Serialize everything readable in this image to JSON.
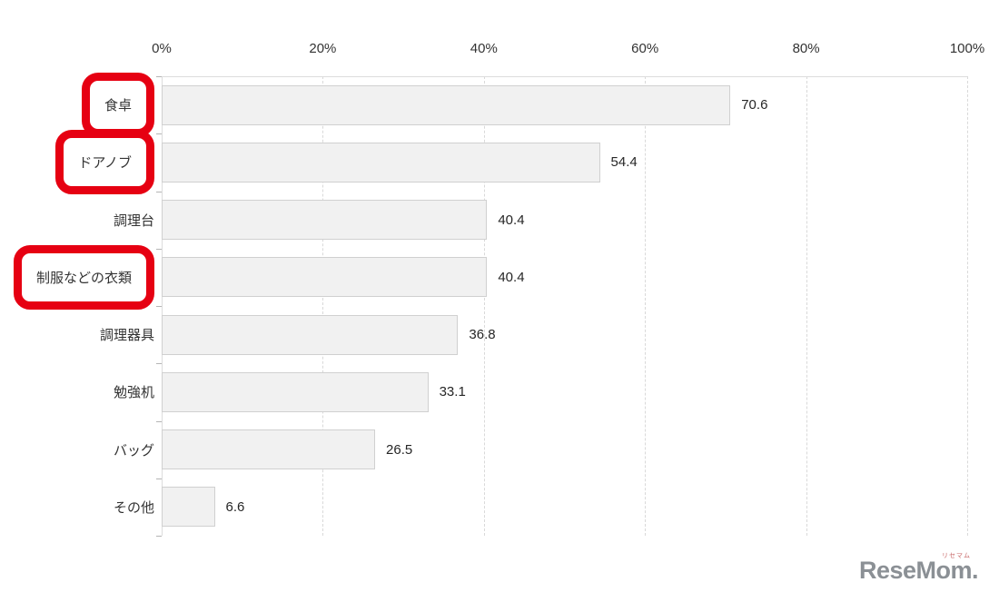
{
  "chart_data": {
    "type": "bar",
    "orientation": "horizontal",
    "title": "",
    "xlabel": "",
    "ylabel": "",
    "xlim": [
      0,
      100
    ],
    "x_tick_labels": [
      "0%",
      "20%",
      "40%",
      "60%",
      "80%",
      "100%"
    ],
    "grid": "vertical-dashed",
    "value_labels_shown": true,
    "categories": [
      "食卓",
      "ドアノブ",
      "調理台",
      "制服などの衣類",
      "調理器具",
      "勉強机",
      "バッグ",
      "その他"
    ],
    "values": [
      70.6,
      54.4,
      40.4,
      40.4,
      36.8,
      33.1,
      26.5,
      6.6
    ],
    "highlighted": [
      true,
      true,
      false,
      true,
      false,
      false,
      false,
      false
    ],
    "highlighted_categories": [
      "食卓",
      "ドアノブ",
      "制服などの衣類"
    ],
    "colors": {
      "bar_fill": "#f1f1f1",
      "bar_border": "#d0d0d0",
      "gridline": "#d9d9d9",
      "axis_line": "#dcdcdc",
      "highlight_border": "#e60012",
      "text": "#333333"
    }
  },
  "logo": {
    "text": "ReseMom.",
    "furigana": "リセマム"
  }
}
